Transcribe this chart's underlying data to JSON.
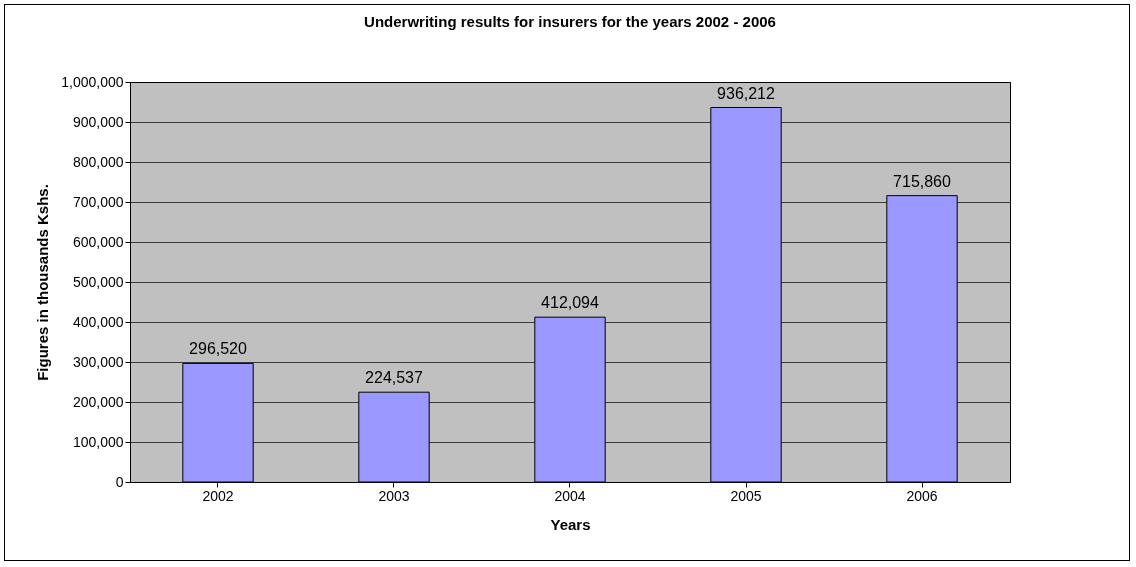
{
  "chart_data": {
    "type": "bar",
    "title": "Underwriting results for insurers for the years 2002 - 2006",
    "xlabel": "Years",
    "ylabel": "Figures in thousands Kshs.",
    "categories": [
      "2002",
      "2003",
      "2004",
      "2005",
      "2006"
    ],
    "values": [
      296520,
      224537,
      412094,
      936212,
      715860
    ],
    "value_labels": [
      "296,520",
      "224,537",
      "412,094",
      "936,212",
      "715,860"
    ],
    "color": "#9999ff",
    "ylim": [
      0,
      1000000
    ],
    "yticks": [
      {
        "value": 0,
        "label": "0"
      },
      {
        "value": 100000,
        "label": "100,000"
      },
      {
        "value": 200000,
        "label": "200,000"
      },
      {
        "value": 300000,
        "label": "300,000"
      },
      {
        "value": 400000,
        "label": "400,000"
      },
      {
        "value": 500000,
        "label": "500,000"
      },
      {
        "value": 600000,
        "label": "600,000"
      },
      {
        "value": 700000,
        "label": "700,000"
      },
      {
        "value": 800000,
        "label": "800,000"
      },
      {
        "value": 900000,
        "label": "900,000"
      },
      {
        "value": 1000000,
        "label": "1,000,000"
      }
    ],
    "grid": "y"
  }
}
